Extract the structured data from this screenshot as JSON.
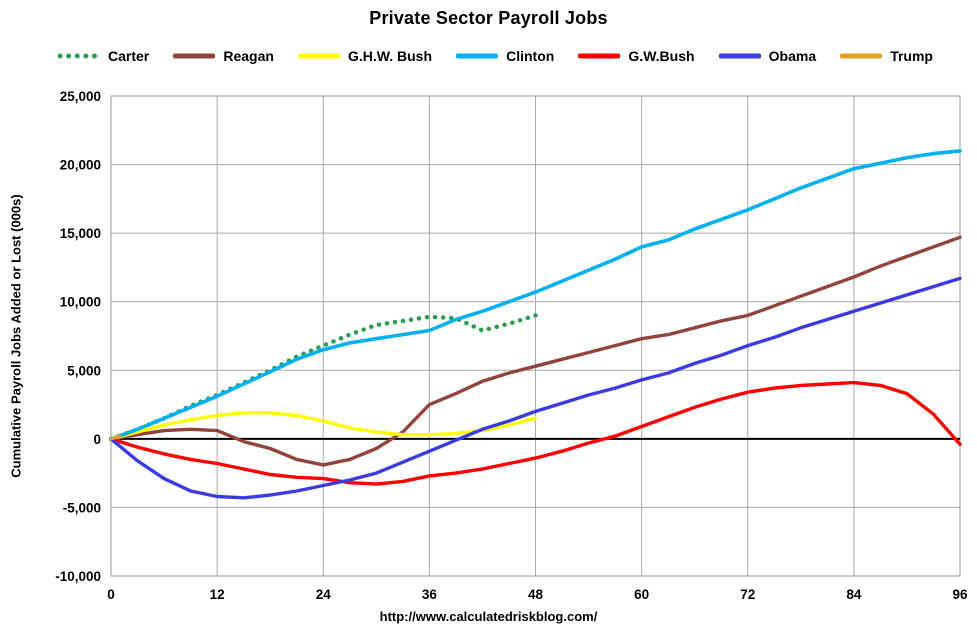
{
  "page": {
    "footer_url": "http://www.calculatedriskblog.com/"
  },
  "chart_data": {
    "type": "line",
    "title": "Private Sector Payroll Jobs",
    "xlabel": "",
    "ylabel": "Cumulative Payroll Jobs Added or  Lost (000s)",
    "xlim": [
      0,
      96
    ],
    "ylim": [
      -10000,
      25000
    ],
    "xticks": [
      0,
      12,
      24,
      36,
      48,
      60,
      72,
      84,
      96
    ],
    "yticks": [
      -10000,
      -5000,
      0,
      5000,
      10000,
      15000,
      20000,
      25000
    ],
    "grid": true,
    "legend_position": "top",
    "background": "#FFFFFF",
    "grid_color": "#A9A9A9",
    "zero_line_color": "#000000",
    "series": [
      {
        "name": "Carter",
        "color": "#2E9C54",
        "style": "dotted",
        "width": 4.5,
        "x": [
          0,
          3,
          6,
          9,
          12,
          15,
          18,
          21,
          24,
          27,
          30,
          33,
          36,
          39,
          42,
          45,
          48
        ],
        "values": [
          0,
          700,
          1500,
          2400,
          3200,
          4100,
          5000,
          6000,
          6800,
          7600,
          8300,
          8600,
          8900,
          8800,
          7900,
          8400,
          9000
        ]
      },
      {
        "name": "Reagan",
        "color": "#91443C",
        "style": "solid",
        "width": 3.4,
        "x": [
          0,
          3,
          6,
          9,
          12,
          15,
          18,
          21,
          24,
          27,
          30,
          33,
          36,
          39,
          42,
          45,
          48,
          51,
          54,
          57,
          60,
          63,
          66,
          69,
          72,
          75,
          78,
          81,
          84,
          87,
          90,
          93,
          96
        ],
        "values": [
          0,
          300,
          600,
          700,
          600,
          -200,
          -700,
          -1500,
          -1900,
          -1500,
          -700,
          500,
          2500,
          3300,
          4200,
          4800,
          5300,
          5800,
          6300,
          6800,
          7300,
          7600,
          8100,
          8600,
          9000,
          9700,
          10400,
          11100,
          11800,
          12600,
          13300,
          14000,
          14700
        ]
      },
      {
        "name": "G.H.W. Bush",
        "color": "#FFFF00",
        "style": "solid",
        "width": 3.4,
        "x": [
          0,
          3,
          6,
          9,
          12,
          15,
          18,
          21,
          24,
          27,
          30,
          33,
          36,
          39,
          42,
          45,
          48
        ],
        "values": [
          0,
          500,
          1000,
          1400,
          1700,
          1900,
          1900,
          1700,
          1300,
          800,
          500,
          300,
          300,
          400,
          600,
          1000,
          1500
        ]
      },
      {
        "name": "Clinton",
        "color": "#00B0F0",
        "style": "solid",
        "width": 3.6,
        "x": [
          0,
          3,
          6,
          9,
          12,
          15,
          18,
          21,
          24,
          27,
          30,
          33,
          36,
          39,
          42,
          45,
          48,
          51,
          54,
          57,
          60,
          63,
          66,
          69,
          72,
          75,
          78,
          81,
          84,
          87,
          90,
          93,
          96
        ],
        "values": [
          0,
          700,
          1500,
          2300,
          3100,
          4000,
          4900,
          5800,
          6500,
          7000,
          7300,
          7600,
          7900,
          8700,
          9300,
          10000,
          10700,
          11500,
          12300,
          13100,
          14000,
          14500,
          15300,
          16000,
          16700,
          17500,
          18300,
          19000,
          19700,
          20100,
          20500,
          20800,
          21000
        ]
      },
      {
        "name": "G.W.Bush",
        "color": "#FF0000",
        "style": "solid",
        "width": 3.4,
        "x": [
          0,
          3,
          6,
          9,
          12,
          15,
          18,
          21,
          24,
          27,
          30,
          33,
          36,
          39,
          42,
          45,
          48,
          51,
          54,
          57,
          60,
          63,
          66,
          69,
          72,
          75,
          78,
          81,
          84,
          87,
          90,
          93,
          96
        ],
        "values": [
          0,
          -600,
          -1100,
          -1500,
          -1800,
          -2200,
          -2600,
          -2800,
          -2900,
          -3200,
          -3300,
          -3100,
          -2700,
          -2500,
          -2200,
          -1800,
          -1400,
          -900,
          -300,
          200,
          900,
          1600,
          2300,
          2900,
          3400,
          3700,
          3900,
          4000,
          4100,
          3900,
          3300,
          1800,
          -400
        ]
      },
      {
        "name": "Obama",
        "color": "#3B3BE2",
        "style": "solid",
        "width": 3.4,
        "x": [
          0,
          3,
          6,
          9,
          12,
          15,
          18,
          21,
          24,
          27,
          30,
          33,
          36,
          39,
          42,
          45,
          48,
          51,
          54,
          57,
          60,
          63,
          66,
          69,
          72,
          75,
          78,
          81,
          84,
          87,
          90,
          93,
          96
        ],
        "values": [
          0,
          -1600,
          -2900,
          -3800,
          -4200,
          -4300,
          -4100,
          -3800,
          -3400,
          -3000,
          -2500,
          -1700,
          -900,
          -100,
          700,
          1300,
          2000,
          2600,
          3200,
          3700,
          4300,
          4800,
          5500,
          6100,
          6800,
          7400,
          8100,
          8700,
          9300,
          9900,
          10500,
          11100,
          11700
        ]
      },
      {
        "name": "Trump",
        "color": "#E3A321",
        "style": "solid",
        "width": 3.4,
        "x": [
          0,
          1
        ],
        "values": [
          0,
          200
        ]
      }
    ]
  }
}
